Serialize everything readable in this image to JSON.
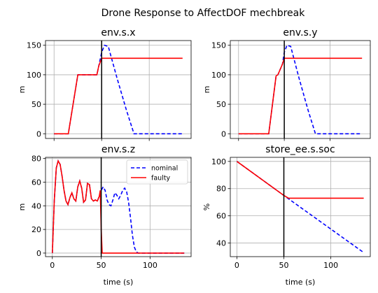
{
  "chart_data": {
    "type": "line",
    "title": "Drone Response to AffectDOF mechbreak",
    "colors": {
      "nominal": "#0000ff",
      "faulty": "#ff0000",
      "marker": "#000000",
      "grid": "#b0b0b0"
    },
    "fault_time": 50,
    "legend": {
      "location": "upper right",
      "subplot": "env.s.z",
      "entries": [
        "nominal",
        "faulty"
      ]
    },
    "subplots": [
      {
        "title": "env.s.x",
        "xlabel": "",
        "ylabel": "m",
        "xlim": [
          -9,
          144
        ],
        "ylim": [
          -8,
          158
        ],
        "xticks": [
          0,
          50,
          100
        ],
        "show_xticklabels": false,
        "yticks": [
          0,
          50,
          100,
          150
        ],
        "grid": true,
        "series": [
          {
            "name": "nominal",
            "style": "dashed",
            "x": [
              0,
              15,
              25,
              45,
              47,
              50,
              53,
              57,
              66,
              76,
              84,
              100,
              135
            ],
            "y": [
              0,
              0,
              100,
              100,
              115,
              138,
              150,
              148,
              95,
              40,
              0,
              0,
              0
            ]
          },
          {
            "name": "faulty",
            "style": "solid",
            "x": [
              0,
              15,
              25,
              45,
              47,
              50,
              135
            ],
            "y": [
              0,
              0,
              100,
              100,
              115,
              128,
              128
            ]
          }
        ]
      },
      {
        "title": "env.s.y",
        "xlabel": "",
        "ylabel": "m",
        "xlim": [
          -9,
          144
        ],
        "ylim": [
          -8,
          158
        ],
        "xticks": [
          0,
          50,
          100
        ],
        "show_xticklabels": false,
        "yticks": [
          0,
          50,
          100,
          150
        ],
        "grid": true,
        "series": [
          {
            "name": "nominal",
            "style": "dashed",
            "x": [
              0,
              33,
              41,
              43,
              48,
              50,
              53,
              57,
              66,
              76,
              84,
              100,
              135
            ],
            "y": [
              0,
              0,
              98,
              100,
              118,
              138,
              150,
              148,
              95,
              40,
              0,
              0,
              0
            ]
          },
          {
            "name": "faulty",
            "style": "solid",
            "x": [
              0,
              33,
              41,
              43,
              48,
              50,
              135
            ],
            "y": [
              0,
              0,
              98,
              100,
              118,
              128,
              128
            ]
          }
        ]
      },
      {
        "title": "env.s.z",
        "xlabel": "time (s)",
        "ylabel": "m",
        "xlim": [
          -7,
          142
        ],
        "ylim": [
          -3,
          81
        ],
        "xticks": [
          0,
          50,
          100
        ],
        "show_xticklabels": true,
        "yticks": [
          0,
          20,
          40,
          60,
          80
        ],
        "grid": true,
        "series": [
          {
            "name": "nominal",
            "style": "dashed",
            "x": [
              0,
              2,
              4,
              6,
              8,
              10,
              12,
              14,
              16,
              18,
              20,
              22,
              24,
              26,
              28,
              30,
              32,
              34,
              36,
              38,
              40,
              42,
              44,
              46,
              48,
              50,
              52,
              54,
              56,
              58,
              60,
              62,
              64,
              66,
              68,
              70,
              72,
              74,
              76,
              78,
              80,
              82,
              84,
              86,
              88,
              90,
              95,
              100,
              110,
              120,
              135
            ],
            "y": [
              0,
              45,
              72,
              78,
              75,
              65,
              53,
              44,
              41,
              47,
              51,
              46,
              44,
              56,
              61,
              55,
              43,
              45,
              59,
              58,
              46,
              44,
              45,
              44,
              48,
              53,
              56,
              53,
              45,
              41,
              40,
              45,
              51,
              49,
              46,
              49,
              53,
              55,
              52,
              43,
              30,
              15,
              5,
              1,
              0,
              0,
              0,
              0,
              0,
              0,
              0
            ]
          },
          {
            "name": "faulty",
            "style": "solid",
            "x": [
              0,
              2,
              4,
              6,
              8,
              10,
              12,
              14,
              16,
              18,
              20,
              22,
              24,
              26,
              28,
              30,
              32,
              34,
              36,
              38,
              40,
              42,
              44,
              46,
              48,
              49,
              50,
              51,
              60,
              80,
              100,
              120,
              135
            ],
            "y": [
              0,
              45,
              72,
              78,
              75,
              65,
              53,
              44,
              41,
              47,
              51,
              46,
              44,
              56,
              61,
              55,
              43,
              45,
              59,
              58,
              46,
              44,
              45,
              44,
              48,
              53,
              20,
              0,
              0,
              0,
              0,
              0,
              0
            ]
          }
        ]
      },
      {
        "title": "store_ee.s.soc",
        "xlabel": "time (s)",
        "ylabel": "%",
        "xlim": [
          -7,
          142
        ],
        "ylim": [
          30,
          103
        ],
        "xticks": [
          0,
          50,
          100
        ],
        "show_xticklabels": true,
        "yticks": [
          40,
          60,
          80,
          100
        ],
        "grid": true,
        "series": [
          {
            "name": "nominal",
            "style": "dashed",
            "x": [
              0,
              50,
              135
            ],
            "y": [
              100,
              75,
              33
            ]
          },
          {
            "name": "faulty",
            "style": "solid",
            "x": [
              0,
              50,
              55,
              135
            ],
            "y": [
              100,
              75,
              73,
              73
            ]
          }
        ]
      }
    ]
  }
}
